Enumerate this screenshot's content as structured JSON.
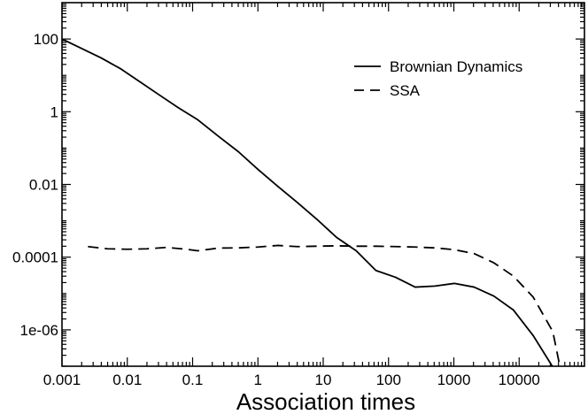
{
  "chart_data": {
    "type": "line",
    "title": "",
    "xlabel": "Association times",
    "ylabel": "",
    "x_scale": "log",
    "y_scale": "log",
    "xlim": [
      0.001,
      100000
    ],
    "ylim": [
      1e-07,
      1000
    ],
    "grid": false,
    "legend_position": "top-right",
    "x_ticks": [
      {
        "value": 0.001,
        "label": "0.001"
      },
      {
        "value": 0.01,
        "label": "0.01"
      },
      {
        "value": 0.1,
        "label": "0.1"
      },
      {
        "value": 1,
        "label": "1"
      },
      {
        "value": 10,
        "label": "10"
      },
      {
        "value": 100,
        "label": "100"
      },
      {
        "value": 1000,
        "label": "1000"
      },
      {
        "value": 10000,
        "label": "10000"
      }
    ],
    "y_ticks": [
      {
        "value": 100,
        "label": "100"
      },
      {
        "value": 1,
        "label": "1"
      },
      {
        "value": 0.01,
        "label": "0.01"
      },
      {
        "value": 0.0001,
        "label": "0.0001"
      },
      {
        "value": 1e-06,
        "label": "1e-06"
      }
    ],
    "series": [
      {
        "name": "Brownian Dynamics",
        "style": "solid",
        "color": "#000000",
        "points": [
          [
            0.001,
            100
          ],
          [
            0.002,
            55
          ],
          [
            0.004,
            30
          ],
          [
            0.008,
            15
          ],
          [
            0.015,
            7
          ],
          [
            0.03,
            3
          ],
          [
            0.06,
            1.3
          ],
          [
            0.12,
            0.6
          ],
          [
            0.25,
            0.21
          ],
          [
            0.5,
            0.08
          ],
          [
            1,
            0.026
          ],
          [
            2,
            0.009
          ],
          [
            4,
            0.0032
          ],
          [
            8,
            0.0011
          ],
          [
            16,
            0.00035
          ],
          [
            32,
            0.00015
          ],
          [
            64,
            4.3e-05
          ],
          [
            128,
            2.8e-05
          ],
          [
            256,
            1.5e-05
          ],
          [
            512,
            1.6e-05
          ],
          [
            1024,
            1.9e-05
          ],
          [
            2048,
            1.5e-05
          ],
          [
            4096,
            8.5e-06
          ],
          [
            8192,
            3.5e-06
          ],
          [
            16384,
            7e-07
          ],
          [
            32768,
            9.5e-08
          ]
        ]
      },
      {
        "name": "SSA",
        "style": "dashed",
        "color": "#000000",
        "points": [
          [
            0.0025,
            0.000195
          ],
          [
            0.005,
            0.00017
          ],
          [
            0.01,
            0.000165
          ],
          [
            0.02,
            0.00017
          ],
          [
            0.04,
            0.000185
          ],
          [
            0.08,
            0.000165
          ],
          [
            0.12,
            0.00015
          ],
          [
            0.25,
            0.000178
          ],
          [
            0.5,
            0.00018
          ],
          [
            1,
            0.00019
          ],
          [
            2,
            0.00021
          ],
          [
            4,
            0.000195
          ],
          [
            8,
            0.0002
          ],
          [
            16,
            0.000205
          ],
          [
            32,
            0.0002
          ],
          [
            64,
            0.0002
          ],
          [
            128,
            0.000195
          ],
          [
            256,
            0.00019
          ],
          [
            512,
            0.00018
          ],
          [
            1024,
            0.00016
          ],
          [
            2048,
            0.000125
          ],
          [
            4096,
            7e-05
          ],
          [
            8192,
            3e-05
          ],
          [
            16384,
            8e-06
          ],
          [
            32768,
            9e-07
          ],
          [
            42000,
            1e-07
          ]
        ]
      }
    ]
  }
}
